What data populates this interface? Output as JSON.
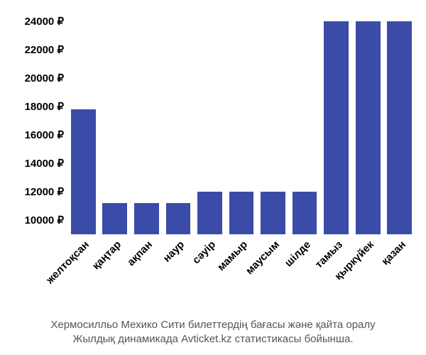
{
  "chart": {
    "type": "bar",
    "currency_symbol": "₽",
    "categories": [
      "желтоқсан",
      "қаңтар",
      "ақпан",
      "наур",
      "сәуір",
      "мамыр",
      "маусым",
      "шілде",
      "тамыз",
      "қыркүйек",
      "қазан"
    ],
    "values": [
      17800,
      11200,
      11200,
      11200,
      12000,
      12000,
      12000,
      12000,
      24000,
      24000,
      24000
    ],
    "bar_color": "#3b4ba8",
    "background_color": "#ffffff",
    "y_min": 9000,
    "y_max": 24000,
    "y_ticks": [
      10000,
      12000,
      14000,
      16000,
      18000,
      20000,
      22000,
      24000
    ],
    "y_tick_color": "#000000",
    "y_tick_fontsize": 15,
    "y_tick_fontweight": "600",
    "x_label_color": "#000000",
    "x_label_fontsize": 15,
    "x_label_fontweight": "600",
    "x_label_rotation_deg": -45,
    "bar_width_ratio": 0.78,
    "caption_color": "#555555",
    "caption_fontsize": 15,
    "caption_line1": "Хермосилльо Мехико Сити билеттердің бағасы және қайта оралу",
    "caption_line2": "Жылдық динамикада Avticket.kz статистикасы бойынша."
  }
}
